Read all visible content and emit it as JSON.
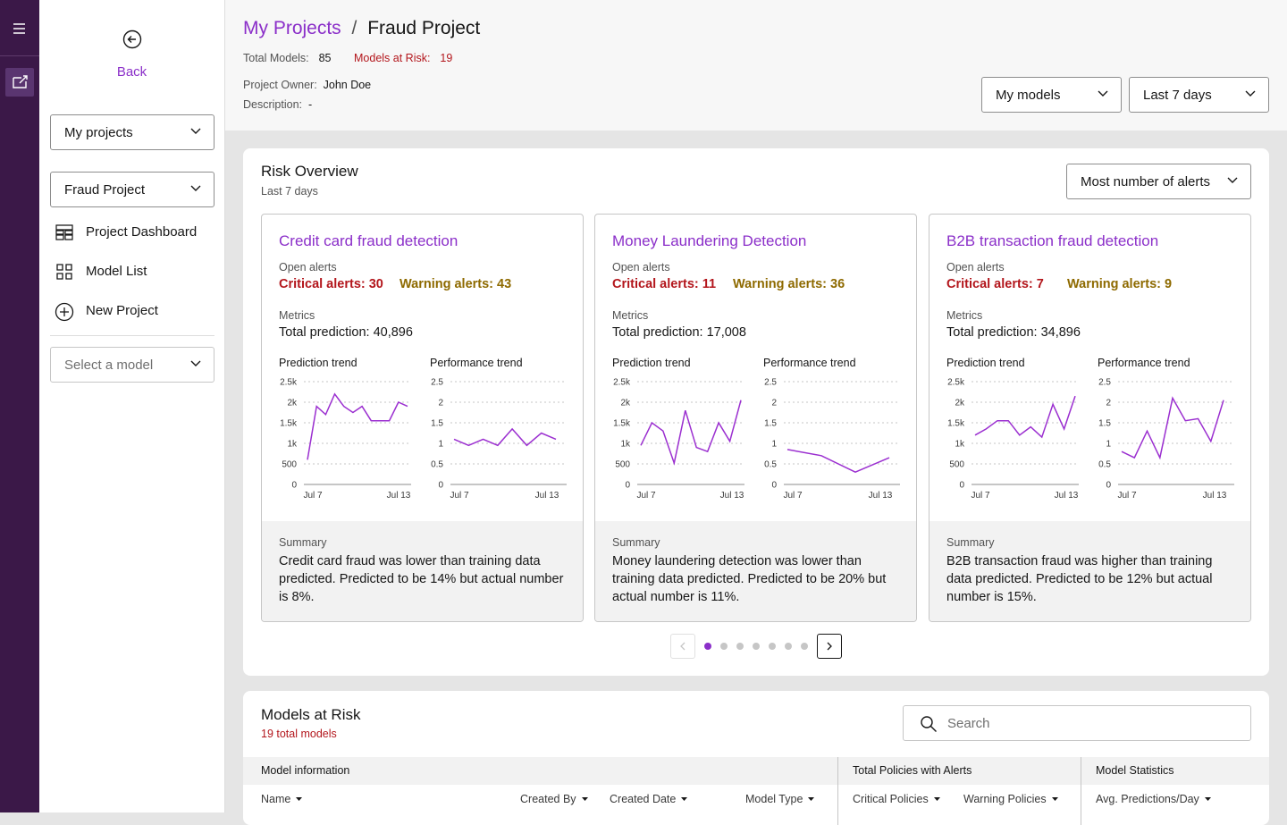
{
  "nav": {
    "back": "Back",
    "project_select": "My projects",
    "project": "Fraud Project",
    "items": [
      "Project Dashboard",
      "Model List",
      "New Project"
    ],
    "model_select": "Select a model"
  },
  "header": {
    "breadcrumb": [
      "My Projects",
      "Fraud Project"
    ],
    "separator": "/",
    "total_models_label": "Total Models:",
    "total_models": 85,
    "models_at_risk_label": "Models at Risk:",
    "models_at_risk": 19,
    "owner_label": "Project Owner:",
    "owner": "John Doe",
    "description_label": "Description:",
    "description": "-",
    "filters": [
      "My models",
      "Last 7 days"
    ]
  },
  "risk_overview": {
    "title": "Risk Overview",
    "subtitle": "Last 7 days",
    "sort": "Most number of alerts",
    "cards": [
      {
        "title": "Credit card fraud detection",
        "alerts_label": "Open alerts",
        "critical": "Critical alerts: 30",
        "warning": "Warning alerts: 43",
        "metrics_label": "Metrics",
        "total": "Total prediction: 40,896",
        "summary_label": "Summary",
        "summary": "Credit card fraud was lower than training data predicted. Predicted to be 14% but actual number is 8%.",
        "charts": [
          {
            "type": "line",
            "title": "Prediction trend",
            "x_labels": [
              "Jul 7",
              "Jul 13"
            ],
            "color": "#9b2fd0",
            "values": [
              600,
              1900,
              1700,
              2200,
              1900,
              1750,
              1900,
              1550,
              1550,
              1550,
              2000,
              1900
            ],
            "ylim": [
              0,
              2500
            ],
            "yticks": [
              0,
              500,
              {
                "value": 1000,
                "label": "1k"
              },
              {
                "value": 1500,
                "label": "1.5k"
              },
              {
                "value": 2000,
                "label": "2k"
              },
              {
                "value": 2500,
                "label": "2.5k"
              }
            ],
            "grid": true
          },
          {
            "type": "line",
            "title": "Performance trend",
            "x_labels": [
              "Jul 7",
              "Jul 13"
            ],
            "color": "#9b2fd0",
            "values": [
              1.1,
              0.95,
              1.1,
              0.95,
              1.35,
              0.95,
              1.25,
              1.1
            ],
            "ylim": [
              0,
              2.5
            ],
            "yticks": [
              0,
              0.5,
              1,
              1.5,
              2,
              2.5
            ],
            "grid": true
          }
        ]
      },
      {
        "title": "Money Laundering Detection",
        "alerts_label": "Open alerts",
        "critical": "Critical alerts: 11",
        "warning": "Warning alerts: 36",
        "metrics_label": "Metrics",
        "total": "Total prediction: 17,008",
        "summary_label": "Summary",
        "summary": "Money laundering detection was lower than training data predicted. Predicted to be 20% but actual number is 11%.",
        "charts": [
          {
            "type": "line",
            "title": "Prediction trend",
            "x_labels": [
              "Jul 7",
              "Jul 13"
            ],
            "color": "#9b2fd0",
            "values": [
              950,
              1500,
              1300,
              520,
              1800,
              900,
              800,
              1500,
              1050,
              2050
            ],
            "ylim": [
              0,
              2500
            ],
            "yticks": [
              0,
              500,
              {
                "value": 1000,
                "label": "1k"
              },
              {
                "value": 1500,
                "label": "1.5k"
              },
              {
                "value": 2000,
                "label": "2k"
              },
              {
                "value": 2500,
                "label": "2.5k"
              }
            ],
            "grid": true
          },
          {
            "type": "line",
            "title": "Performance trend",
            "x_labels": [
              "Jul 7",
              "Jul 13"
            ],
            "color": "#9b2fd0",
            "values": [
              0.85,
              0.7,
              0.3,
              0.65
            ],
            "ylim": [
              0,
              2.5
            ],
            "yticks": [
              0,
              0.5,
              1,
              1.5,
              2,
              2.5
            ],
            "grid": true
          }
        ]
      },
      {
        "title": "B2B transaction fraud detection",
        "alerts_label": "Open alerts",
        "critical": "Critical alerts: 7",
        "warning": "Warning alerts: 9",
        "metrics_label": "Metrics",
        "total": "Total prediction: 34,896",
        "summary_label": "Summary",
        "summary": "B2B transaction fraud was higher than training data predicted. Predicted to be 12% but actual number is 15%.",
        "charts": [
          {
            "type": "line",
            "title": "Prediction trend",
            "x_labels": [
              "Jul 7",
              "Jul 13"
            ],
            "color": "#9b2fd0",
            "values": [
              1200,
              1350,
              1550,
              1550,
              1200,
              1400,
              1150,
              1950,
              1350,
              2150
            ],
            "ylim": [
              0,
              2500
            ],
            "yticks": [
              0,
              500,
              {
                "value": 1000,
                "label": "1k"
              },
              {
                "value": 1500,
                "label": "1.5k"
              },
              {
                "value": 2000,
                "label": "2k"
              },
              {
                "value": 2500,
                "label": "2.5k"
              }
            ],
            "grid": true
          },
          {
            "type": "line",
            "title": "Performance trend",
            "x_labels": [
              "Jul 7",
              "Jul 13"
            ],
            "color": "#9b2fd0",
            "values": [
              0.8,
              0.65,
              1.3,
              0.65,
              2.1,
              1.55,
              1.6,
              1.05,
              2.05
            ],
            "ylim": [
              0,
              2.5
            ],
            "yticks": [
              0,
              0.5,
              1,
              1.5,
              2,
              2.5
            ],
            "grid": true
          }
        ]
      }
    ]
  },
  "models_at_risk": {
    "title": "Models at Risk",
    "subtitle": "19 total models",
    "search": "Search",
    "groups": [
      "Model information",
      "Total Policies with Alerts",
      "Model Statistics"
    ],
    "columns": [
      "Name",
      "Created By",
      "Created Date",
      "Model Type",
      "Critical Policies",
      "Warning Policies",
      "Avg. Predictions/Day"
    ]
  }
}
